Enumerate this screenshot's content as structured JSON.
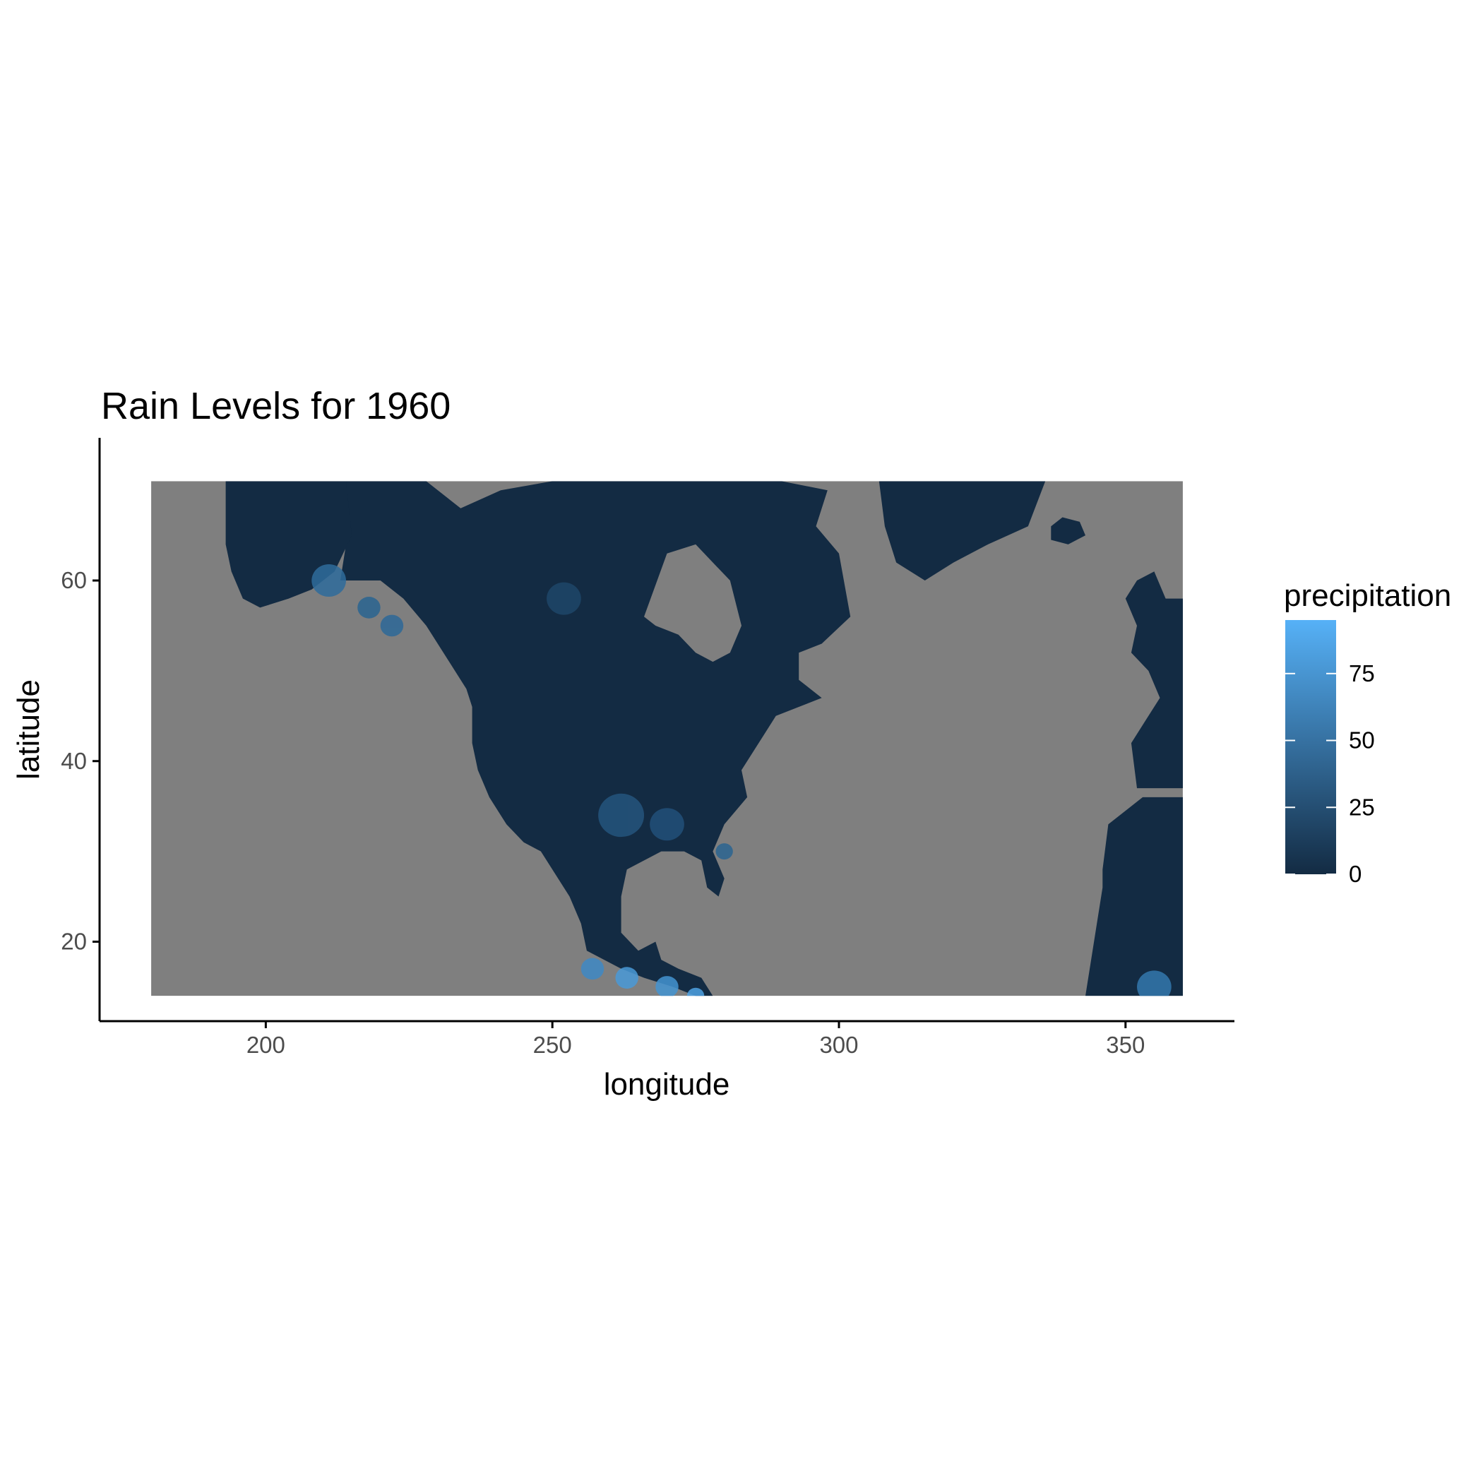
{
  "chart_data": {
    "type": "heatmap",
    "title": "Rain Levels for 1960",
    "xlabel": "longitude",
    "ylabel": "latitude",
    "xlim": [
      171,
      369
    ],
    "ylim": [
      11.2,
      75.8
    ],
    "data_extent": {
      "x": [
        180,
        360
      ],
      "y": [
        14,
        71
      ]
    },
    "x_ticks": [
      200,
      250,
      300,
      350
    ],
    "y_ticks": [
      20,
      40,
      60
    ],
    "grid": false,
    "na_color": "#7f7f7f",
    "legend": {
      "title": "precipitation",
      "position": "right",
      "breaks": [
        0,
        25,
        50,
        75
      ],
      "range": [
        0,
        95
      ],
      "low_color": "#132b43",
      "high_color": "#56b1f7"
    },
    "land_regions": [
      {
        "name": "North America mainland",
        "lon": [
          220,
          302
        ],
        "lat": [
          15,
          71
        ]
      },
      {
        "name": "Alaska",
        "lon": [
          193,
          218
        ],
        "lat": [
          55,
          71
        ]
      },
      {
        "name": "Greenland",
        "lon": [
          307,
          336
        ],
        "lat": [
          60,
          71
        ]
      },
      {
        "name": "Iceland",
        "lon": [
          337,
          343
        ],
        "lat": [
          64,
          67
        ]
      },
      {
        "name": "Europe",
        "lon": [
          350,
          360
        ],
        "lat": [
          37,
          61
        ]
      },
      {
        "name": "Africa",
        "lon": [
          343,
          360
        ],
        "lat": [
          14,
          36
        ]
      }
    ],
    "annotations": []
  }
}
